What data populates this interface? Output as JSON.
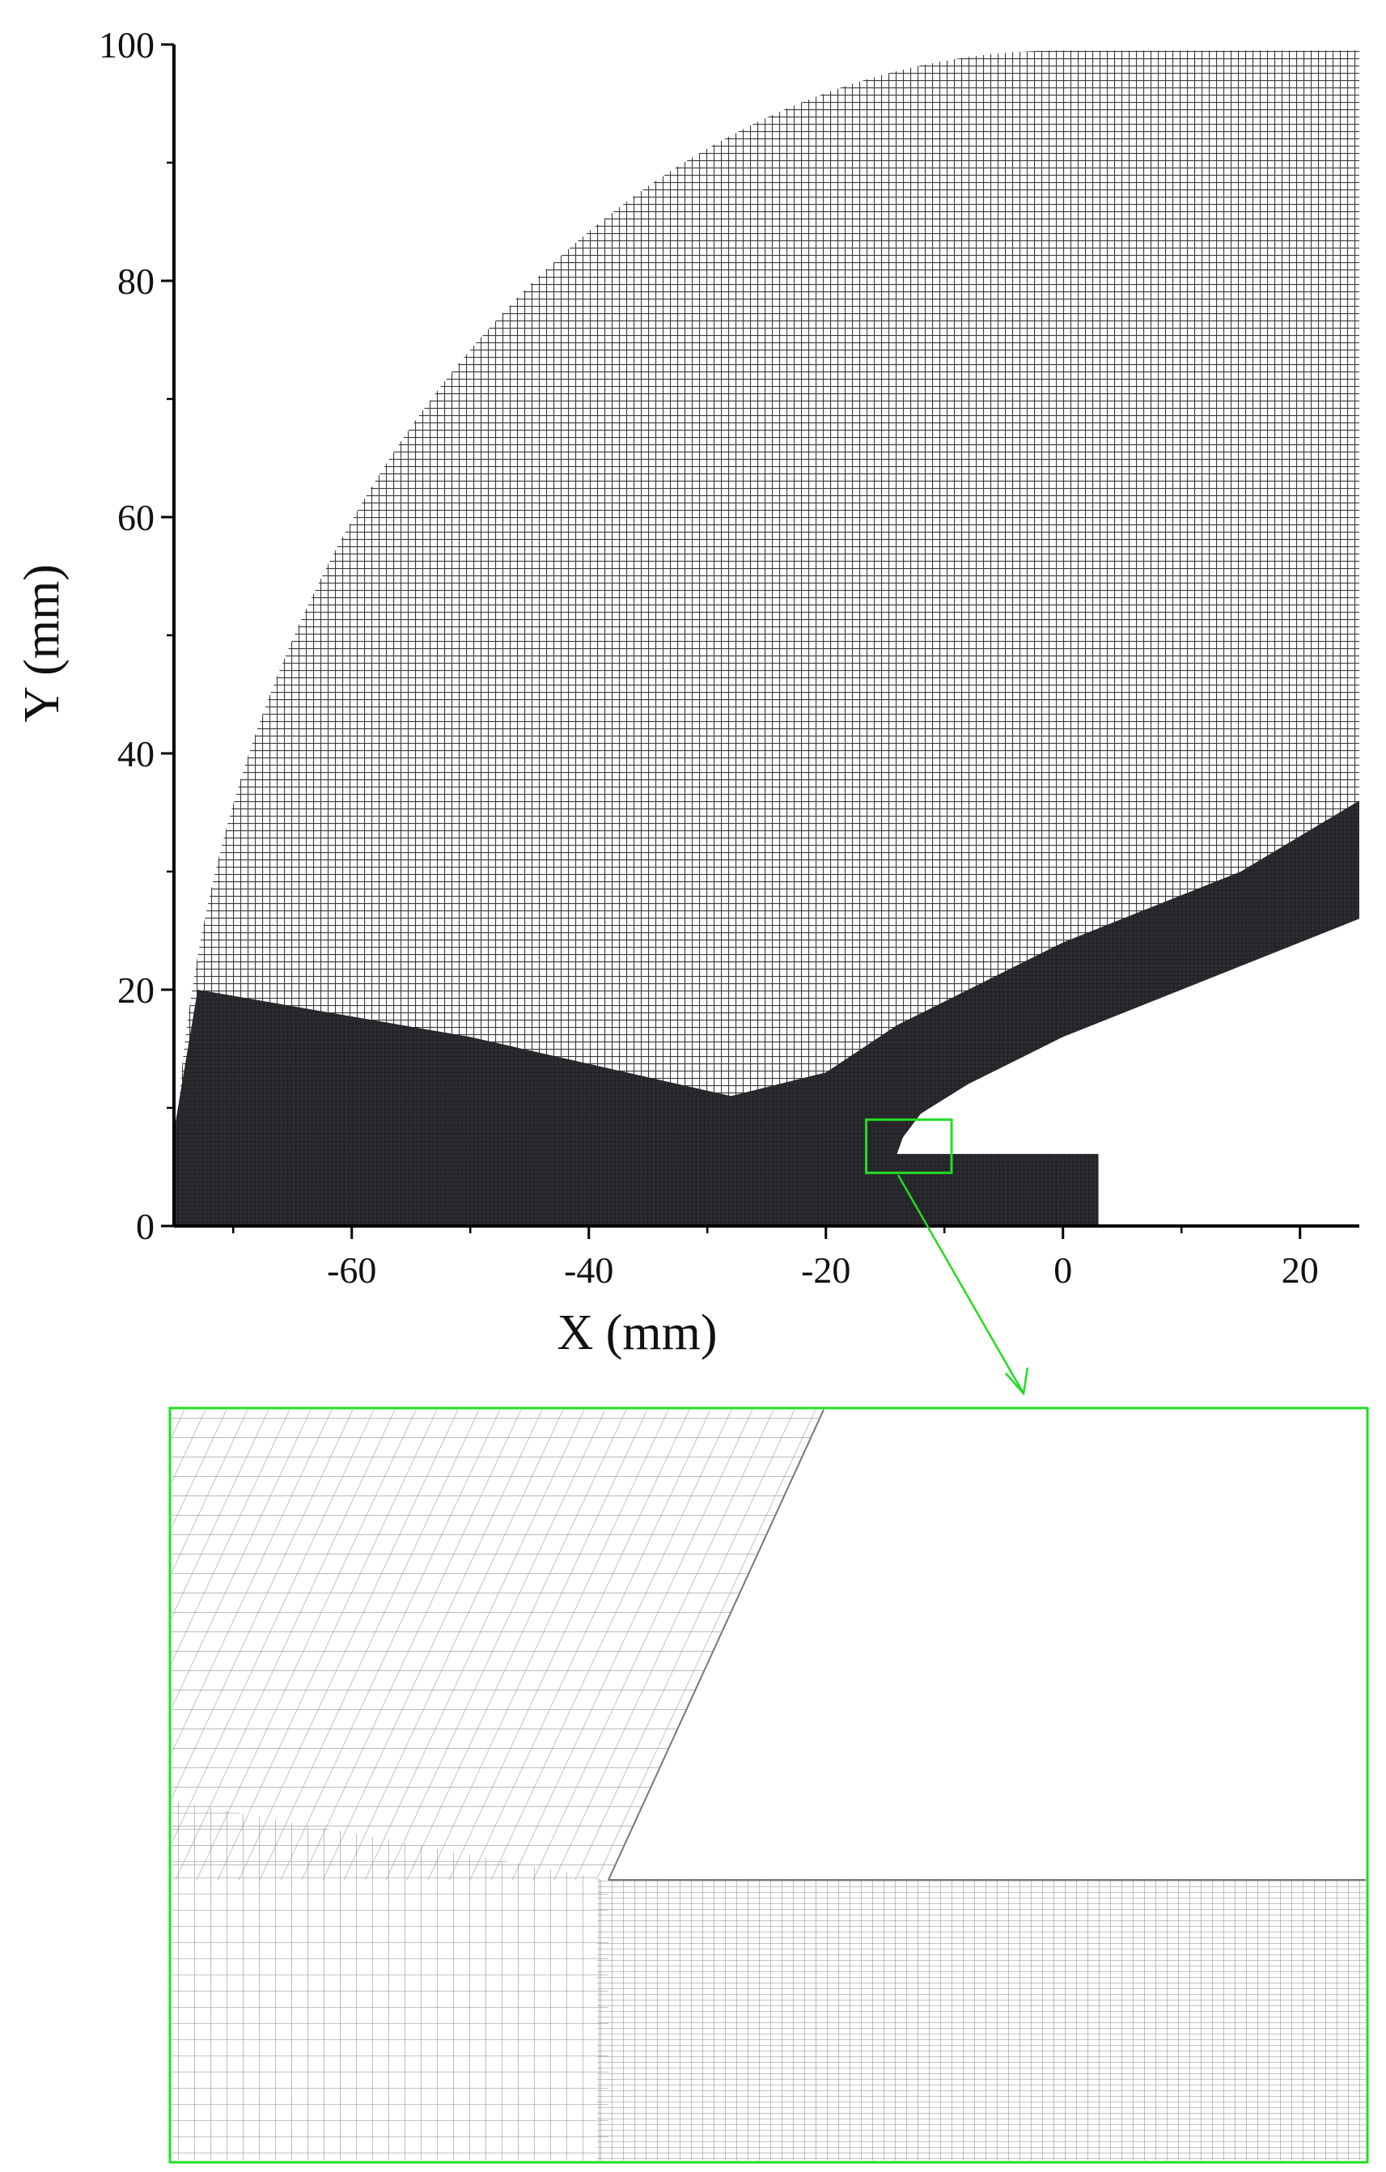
{
  "x_axis": {
    "label": "X (mm)",
    "range": [
      -75,
      25
    ],
    "major_ticks": [
      -60,
      -40,
      -20,
      0,
      20
    ],
    "tick_labels": [
      "-60",
      "-40",
      "-20",
      "0",
      "20"
    ]
  },
  "y_axis": {
    "label": "Y (mm)",
    "range": [
      0,
      100
    ],
    "major_ticks": [
      0,
      20,
      40,
      60,
      80,
      100
    ],
    "tick_labels": [
      "0",
      "20",
      "40",
      "60",
      "80",
      "100"
    ]
  },
  "mesh": {
    "type": "structured computational grid",
    "line_color": "#2b2b2b",
    "refined_color": "#26262d",
    "outer_boundary": "quarter-circle arc, radius about 75 mm",
    "detail_region": {
      "x_range": [
        -16.6,
        -9.4
      ],
      "y_range": [
        4.5,
        9
      ]
    }
  },
  "colors": {
    "highlight": "#22dd22",
    "axis": "#000000",
    "background": "#ffffff"
  }
}
